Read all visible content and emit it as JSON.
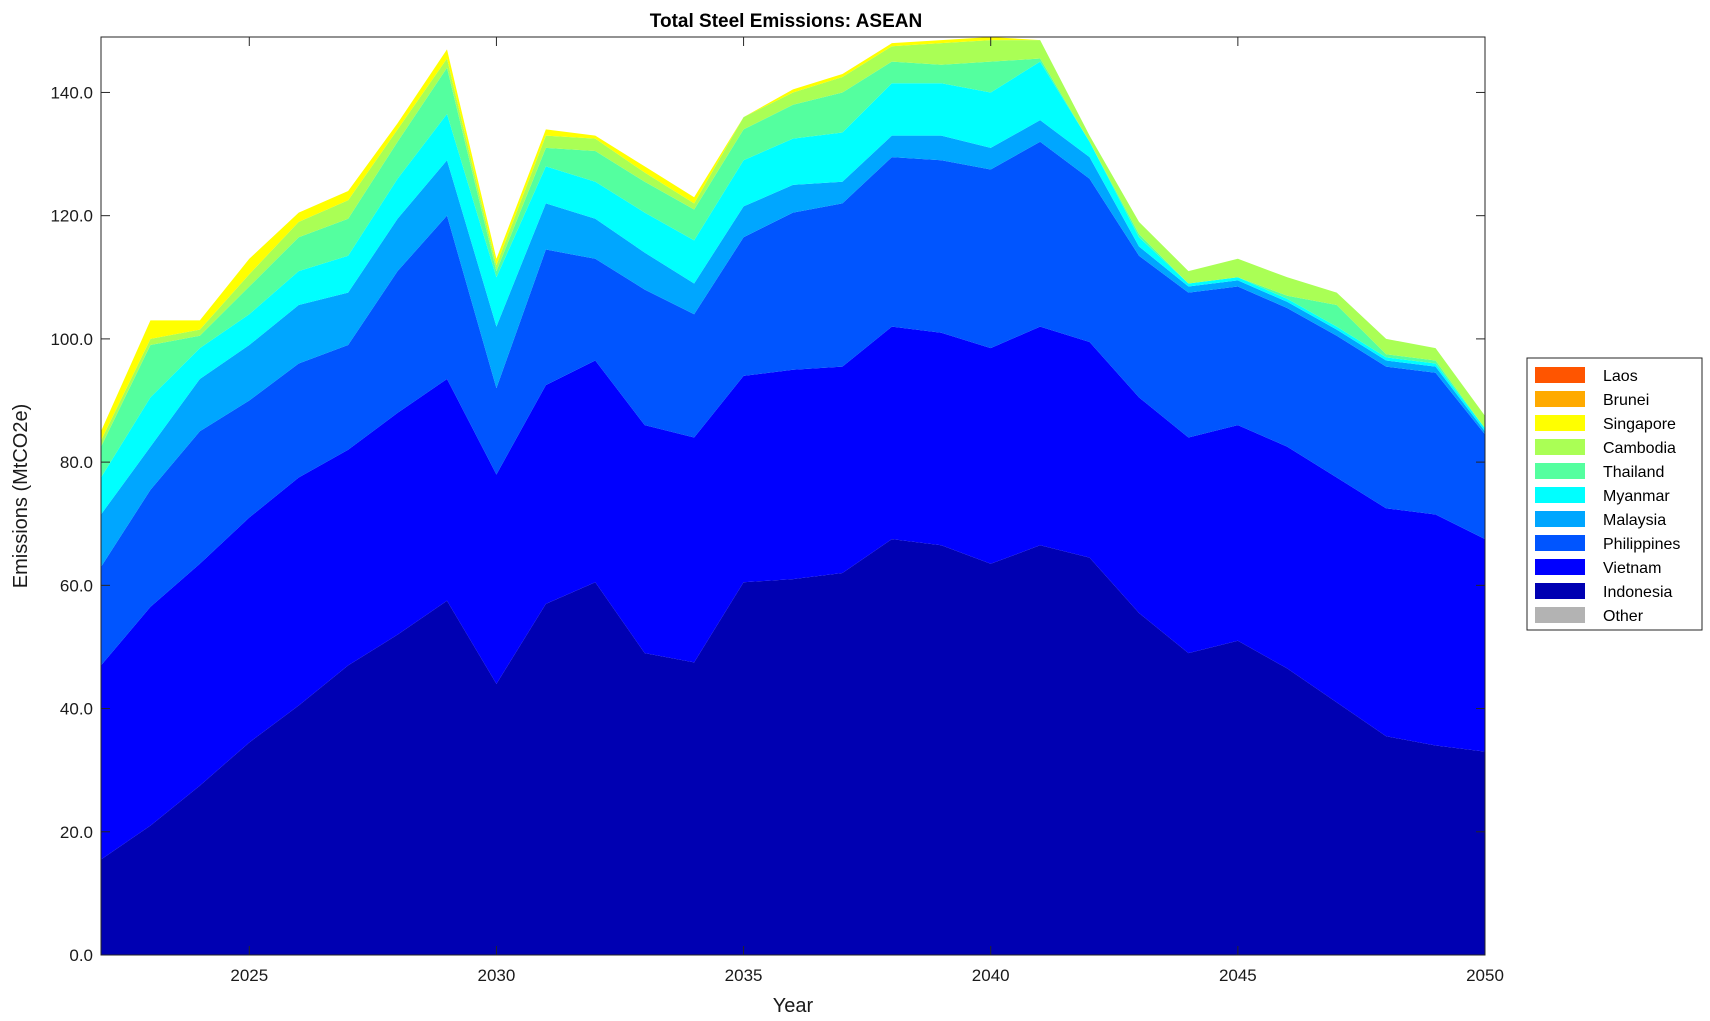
{
  "chart_data": {
    "type": "area",
    "title": "Total Steel Emissions: ASEAN",
    "xlabel": "Year",
    "ylabel": "Emissions (MtCO2e)",
    "xlim": [
      2022,
      2050
    ],
    "ylim": [
      0,
      149
    ],
    "xticks": [
      2025,
      2030,
      2035,
      2040,
      2045,
      2050
    ],
    "xtick_labels": [
      "2025",
      "2030",
      "2035",
      "2040",
      "2045",
      "2050"
    ],
    "yticks": [
      0,
      20,
      40,
      60,
      80,
      100,
      120,
      140
    ],
    "ytick_labels": [
      "0.0",
      "20.0",
      "40.0",
      "60.0",
      "80.0",
      "100.0",
      "120.0",
      "140.0"
    ],
    "grid": false,
    "legend_position": "right",
    "legend_order": [
      "Laos",
      "Brunei",
      "Singapore",
      "Cambodia",
      "Thailand",
      "Myanmar",
      "Malaysia",
      "Philippines",
      "Vietnam",
      "Indonesia",
      "Other"
    ],
    "x": [
      2022,
      2023,
      2024,
      2025,
      2026,
      2027,
      2028,
      2029,
      2030,
      2031,
      2032,
      2033,
      2034,
      2035,
      2036,
      2037,
      2038,
      2039,
      2040,
      2041,
      2042,
      2043,
      2044,
      2045,
      2046,
      2047,
      2048,
      2049,
      2050
    ],
    "series": [
      {
        "name": "Other",
        "color": "#b3b3b3",
        "values": [
          0,
          0,
          0,
          0,
          0,
          0,
          0,
          0,
          0,
          0,
          0,
          0,
          0,
          0,
          0,
          0,
          0,
          0,
          0,
          0,
          0,
          0,
          0,
          0,
          0,
          0,
          0,
          0,
          0
        ]
      },
      {
        "name": "Indonesia",
        "color": "#0000b2",
        "values": [
          15.5,
          21,
          27.5,
          34.5,
          40.5,
          47,
          52,
          57.5,
          44,
          57,
          60.5,
          49,
          47.5,
          60.5,
          61,
          62,
          67.5,
          66.5,
          63.5,
          66.5,
          64.5,
          55.5,
          49,
          51,
          46.5,
          41,
          35.5,
          34,
          33
        ]
      },
      {
        "name": "Vietnam",
        "color": "#0000ff",
        "values": [
          31.5,
          35.5,
          36,
          36.5,
          37,
          35,
          36,
          36,
          34,
          35.5,
          36,
          37,
          36.5,
          33.5,
          34,
          33.5,
          34.5,
          34.5,
          35,
          35.5,
          35,
          35,
          35,
          35,
          36,
          36.5,
          37,
          37.5,
          34.5
        ]
      },
      {
        "name": "Philippines",
        "color": "#0055ff",
        "values": [
          16,
          19,
          21.5,
          19,
          18.5,
          17,
          23,
          26.5,
          14,
          22,
          16.5,
          22,
          20,
          22.5,
          25.5,
          26.5,
          27.5,
          28,
          29,
          30,
          26.5,
          23,
          23.5,
          22.5,
          22.5,
          23,
          23,
          23,
          17
        ]
      },
      {
        "name": "Malaysia",
        "color": "#00a6ff",
        "values": [
          8.5,
          7,
          8.5,
          9,
          9.5,
          8.5,
          8.5,
          9,
          10,
          7.5,
          6.5,
          6,
          5,
          5,
          4.5,
          3.5,
          3.5,
          4,
          3.5,
          3.5,
          3.5,
          1.5,
          1,
          1,
          1,
          1,
          1,
          1,
          0.5
        ]
      },
      {
        "name": "Myanmar",
        "color": "#00ffff",
        "values": [
          6,
          8,
          5,
          5,
          5.5,
          6,
          6.5,
          7.5,
          8,
          6,
          6,
          6.5,
          7,
          7.5,
          7.5,
          8,
          8.5,
          8.5,
          9,
          9.5,
          2.5,
          1.5,
          0.5,
          0.5,
          0.5,
          0.5,
          0.5,
          0.5,
          0.5
        ]
      },
      {
        "name": "Thailand",
        "color": "#54ff9f",
        "values": [
          5,
          8.5,
          2,
          4.5,
          5.5,
          6,
          6,
          7.5,
          1,
          3,
          5,
          5,
          5,
          5,
          5.5,
          6.5,
          3.5,
          3,
          5,
          0.5,
          0,
          0.5,
          0,
          0,
          0.5,
          3.5,
          0.5,
          0.5,
          0
        ]
      },
      {
        "name": "Cambodia",
        "color": "#aaff55",
        "values": [
          1,
          1,
          1,
          2,
          2.5,
          3,
          2,
          1.5,
          1,
          2,
          2,
          1.5,
          1,
          2,
          2,
          2.5,
          2.5,
          3.5,
          3.5,
          3,
          1,
          2,
          2,
          3,
          3,
          2,
          2.5,
          2,
          2
        ]
      },
      {
        "name": "Singapore",
        "color": "#ffff00",
        "values": [
          1.5,
          3,
          1.5,
          2.5,
          1.5,
          1.5,
          1,
          1.5,
          1,
          1,
          0.5,
          1,
          1,
          0,
          0.5,
          0.5,
          0.5,
          0.5,
          0.5,
          0,
          0,
          0,
          0,
          0,
          0,
          0,
          0,
          0,
          0
        ]
      },
      {
        "name": "Brunei",
        "color": "#ffaa00",
        "values": [
          0,
          0,
          0,
          0,
          0,
          0,
          0,
          0,
          0,
          0,
          0,
          0,
          0,
          0,
          0,
          0,
          0,
          0,
          0,
          0,
          0,
          0,
          0,
          0,
          0,
          0,
          0,
          0,
          0
        ]
      },
      {
        "name": "Laos",
        "color": "#ff5500",
        "values": [
          0,
          0,
          0,
          0,
          0,
          0,
          0,
          0,
          0,
          0,
          0,
          0,
          0,
          0,
          0,
          0,
          0,
          0,
          0,
          0,
          0,
          0,
          0,
          0,
          0,
          0,
          0,
          0,
          0
        ]
      }
    ]
  }
}
